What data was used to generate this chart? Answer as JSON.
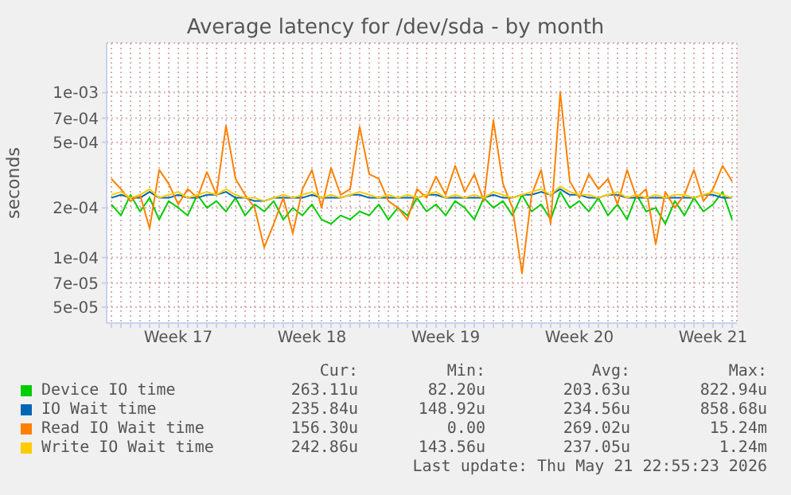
{
  "chart_data": {
    "type": "line",
    "title": "Average latency for /dev/sda - by month",
    "ylabel": "seconds",
    "log": true,
    "grid": true,
    "legend": "bottom",
    "marker": "none",
    "line_style": "solid",
    "ylim": [
      4e-05,
      0.002
    ],
    "yticks": [
      {
        "value": 5e-05,
        "label": "5e-05"
      },
      {
        "value": 7e-05,
        "label": "7e-05"
      },
      {
        "value": 0.0001,
        "label": "1e-04"
      },
      {
        "value": 0.0002,
        "label": "2e-04"
      },
      {
        "value": 0.0005,
        "label": "5e-04"
      },
      {
        "value": 0.0007,
        "label": "7e-04"
      },
      {
        "value": 0.001,
        "label": "1e-03"
      }
    ],
    "categories": [
      null,
      null,
      null,
      null,
      null,
      null,
      null,
      "Week 17",
      null,
      null,
      null,
      null,
      null,
      null,
      null,
      null,
      null,
      null,
      null,
      null,
      null,
      "Week 18",
      null,
      null,
      null,
      null,
      null,
      null,
      null,
      null,
      null,
      null,
      null,
      null,
      null,
      "Week 19",
      null,
      null,
      null,
      null,
      null,
      null,
      null,
      null,
      null,
      null,
      null,
      null,
      null,
      "Week 20",
      null,
      null,
      null,
      null,
      null,
      null,
      null,
      null,
      null,
      null,
      null,
      null,
      null,
      "Week 21",
      null,
      null
    ],
    "series": [
      {
        "name": "Device IO time",
        "color": "#00cc00",
        "values": [
          0.00021,
          0.00018,
          0.00024,
          0.00019,
          0.00023,
          0.00017,
          0.00022,
          0.0002,
          0.00018,
          0.00024,
          0.0002,
          0.00022,
          0.00019,
          0.00023,
          0.00018,
          0.00021,
          0.00019,
          0.00022,
          0.00017,
          0.0002,
          0.00018,
          0.00021,
          0.00017,
          0.00016,
          0.00018,
          0.00017,
          0.00019,
          0.00018,
          0.00021,
          0.00017,
          0.0002,
          0.00018,
          0.00023,
          0.00019,
          0.00021,
          0.00018,
          0.00022,
          0.0002,
          0.00017,
          0.00023,
          0.0002,
          0.00022,
          0.00018,
          0.00024,
          0.00019,
          0.00021,
          0.00017,
          0.00025,
          0.0002,
          0.00022,
          0.00019,
          0.00023,
          0.00018,
          0.00021,
          0.00017,
          0.00024,
          0.00019,
          0.0002,
          0.00016,
          0.00022,
          0.00018,
          0.00023,
          0.00019,
          0.00021,
          0.00025,
          0.00017
        ]
      },
      {
        "name": "IO Wait time",
        "color": "#0066b3",
        "values": [
          0.00023,
          0.00024,
          0.00023,
          0.00023,
          0.00025,
          0.00023,
          0.00023,
          0.00024,
          0.00023,
          0.00023,
          0.00024,
          0.00024,
          0.00025,
          0.00023,
          0.00023,
          0.00022,
          0.00022,
          0.00023,
          0.00023,
          0.00023,
          0.00023,
          0.00024,
          0.00023,
          0.00023,
          0.00023,
          0.00024,
          0.00024,
          0.00023,
          0.00023,
          0.00023,
          0.00023,
          0.00023,
          0.00023,
          0.00024,
          0.00024,
          0.00023,
          0.00023,
          0.00023,
          0.00023,
          0.00023,
          0.00024,
          0.00023,
          0.00023,
          0.00024,
          0.00024,
          0.00025,
          0.00024,
          0.00026,
          0.00024,
          0.00024,
          0.00023,
          0.00023,
          0.00024,
          0.00024,
          0.00023,
          0.00023,
          0.00023,
          0.00023,
          0.00023,
          0.00023,
          0.00023,
          0.00023,
          0.00024,
          0.00024,
          0.00023,
          0.00023
        ]
      },
      {
        "name": "Read IO Wait time",
        "color": "#ff8000",
        "values": [
          0.0003,
          0.00026,
          0.00022,
          0.00024,
          0.00015,
          0.00034,
          0.00028,
          0.00021,
          0.00026,
          0.00023,
          0.00033,
          0.00024,
          0.00063,
          0.0003,
          0.00024,
          0.0002,
          0.000115,
          0.00016,
          0.00023,
          0.00014,
          0.00026,
          0.00034,
          0.0002,
          0.00035,
          0.00024,
          0.00026,
          0.00062,
          0.00032,
          0.0003,
          0.00022,
          0.0002,
          0.00017,
          0.00026,
          0.00023,
          0.00031,
          0.00024,
          0.00036,
          0.00025,
          0.00032,
          0.00022,
          0.00068,
          0.00028,
          0.0002,
          8e-05,
          0.00024,
          0.00034,
          0.00016,
          0.001,
          0.00029,
          0.00023,
          0.00032,
          0.00026,
          0.0003,
          0.00021,
          0.00034,
          0.00023,
          0.00026,
          0.00012,
          0.00025,
          0.0002,
          0.00024,
          0.00034,
          0.00022,
          0.00026,
          0.00036,
          0.00029
        ]
      },
      {
        "name": "Write IO Wait time",
        "color": "#ffcc00",
        "values": [
          0.00024,
          0.00025,
          0.00023,
          0.00024,
          0.00026,
          0.00023,
          0.00024,
          0.00025,
          0.00023,
          0.00024,
          0.00025,
          0.00024,
          0.00026,
          0.00024,
          0.00023,
          0.00023,
          0.00022,
          0.00023,
          0.00024,
          0.00023,
          0.00024,
          0.00025,
          0.00023,
          0.00024,
          0.00023,
          0.00024,
          0.00025,
          0.00024,
          0.00023,
          0.00024,
          0.00023,
          0.00024,
          0.00023,
          0.00024,
          0.00025,
          0.00023,
          0.00024,
          0.00023,
          0.00024,
          0.00023,
          0.00025,
          0.00024,
          0.00023,
          0.00024,
          0.00025,
          0.00026,
          0.00024,
          0.00027,
          0.00025,
          0.00024,
          0.00024,
          0.00023,
          0.00024,
          0.00025,
          0.00023,
          0.00024,
          0.00023,
          0.00024,
          0.00023,
          0.00024,
          0.00024,
          0.00023,
          0.00024,
          0.00025,
          0.00024,
          0.00023
        ]
      }
    ],
    "annotations": [
      "Cur:",
      "Min:",
      "Avg:",
      "Max:",
      "263.11u",
      "82.20u",
      "203.63u",
      "822.94u",
      "235.84u",
      "148.92u",
      "234.56u",
      "858.68u",
      "156.30u",
      "0.00",
      "269.02u",
      "15.24m",
      "242.86u",
      "143.56u",
      "237.05u",
      "1.24m",
      "Last update: Thu May 21 22:55:23 2026"
    ]
  }
}
